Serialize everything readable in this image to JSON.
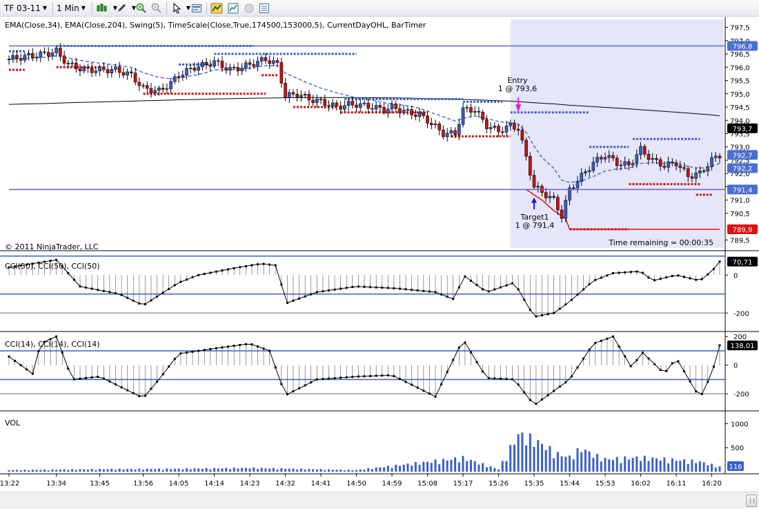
{
  "toolbar": {
    "instrument": "TF 03-11",
    "interval": "1 Min",
    "icons": [
      "bars-type-icon",
      "draw-pencil-icon",
      "zoom-in-icon",
      "zoom-out-icon",
      "pointer-icon",
      "properties-icon",
      "strategy-icon",
      "chart-trader-icon",
      "record-icon",
      "data-box-icon"
    ]
  },
  "price_panel": {
    "indicator_label": "EMA(Close,34), EMA(Close,204), Swing(5), TimeScale(Close,True,174500,153000,5), CurrentDayOHL, BarTimer",
    "copyright": "© 2011 NinjaTrader, LLC",
    "timer": "Time remaining = 00:00:35",
    "axis_ticks": [
      "797,5",
      "797,0",
      "796,5",
      "796,0",
      "795,5",
      "795,0",
      "794,5",
      "794,0",
      "793,5",
      "793,0",
      "792,5",
      "792,0",
      "791,5",
      "791,0",
      "790,5",
      "789,5"
    ],
    "price_markers": [
      {
        "label": "796,8",
        "value": 796.8,
        "color": "#4a6fd0"
      },
      {
        "label": "793,7",
        "value": 793.7,
        "color": "#000000"
      },
      {
        "label": "792,7",
        "value": 792.7,
        "color": "#4a6fd0"
      },
      {
        "label": "792,2",
        "value": 792.2,
        "color": "#4a6fd0"
      },
      {
        "label": "791,4",
        "value": 791.4,
        "color": "#4a6fd0"
      },
      {
        "label": "789,9",
        "value": 789.9,
        "color": "#e01010"
      }
    ],
    "entry_label": "Entry",
    "entry_detail": "1 @ 793,6",
    "target_label": "Target1",
    "target_detail": "1 @ 791,4"
  },
  "cci50_panel": {
    "label": "CCI(50), CCI(50), CCI(50)",
    "axis_ticks": [
      "0",
      "-200"
    ],
    "marker": "70,71"
  },
  "cci14_panel": {
    "label": "CCI(14), CCI(14), CCI(14)",
    "axis_ticks": [
      "200",
      "0",
      "-200"
    ],
    "marker": "138,01"
  },
  "volume_panel": {
    "label": "VOL",
    "axis_ticks": [
      "1000",
      "500"
    ],
    "marker": "116"
  },
  "time_axis": [
    "13:22",
    "13:34",
    "13:45",
    "13:56",
    "14:05",
    "14:14",
    "14:23",
    "14:32",
    "14:41",
    "14:50",
    "14:59",
    "15:08",
    "15:17",
    "15:26",
    "15:35",
    "15:44",
    "15:53",
    "16:02",
    "16:11",
    "16:20"
  ],
  "colors": {
    "up_bar": "#3a5fcd",
    "down_bar": "#cc1111",
    "ema_fast": "#4a6fd0",
    "ema_slow": "#000000",
    "swing_high": "#3a5fcd",
    "swing_low": "#cc1111",
    "session_shade": "#e6e6fa",
    "level_line": "#4a6fd0"
  },
  "chart_data": {
    "type": "candlestick",
    "x_range": [
      "13:22",
      "16:22"
    ],
    "y_range": [
      789.2,
      797.8
    ],
    "levels": {
      "day_high": 796.8,
      "day_low": 789.9,
      "target": 791.4,
      "current": 792.7,
      "ema34": 792.2,
      "ema204": 793.7
    },
    "close_path": [
      [
        "13:22",
        796.3
      ],
      [
        "13:26",
        796.4
      ],
      [
        "13:31",
        796.5
      ],
      [
        "13:34",
        796.6
      ],
      [
        "13:37",
        796.1
      ],
      [
        "13:41",
        795.9
      ],
      [
        "13:45",
        795.9
      ],
      [
        "13:49",
        795.9
      ],
      [
        "13:53",
        795.7
      ],
      [
        "13:56",
        795.2
      ],
      [
        "14:00",
        795.1
      ],
      [
        "14:03",
        795.4
      ],
      [
        "14:05",
        795.7
      ],
      [
        "14:09",
        796.0
      ],
      [
        "14:12",
        796.1
      ],
      [
        "14:14",
        796.2
      ],
      [
        "14:18",
        795.9
      ],
      [
        "14:21",
        796.0
      ],
      [
        "14:23",
        796.1
      ],
      [
        "14:27",
        796.3
      ],
      [
        "14:30",
        796.1
      ],
      [
        "14:32",
        794.9
      ],
      [
        "14:35",
        795.0
      ],
      [
        "14:38",
        794.8
      ],
      [
        "14:41",
        794.7
      ],
      [
        "14:45",
        794.5
      ],
      [
        "14:48",
        794.6
      ],
      [
        "14:50",
        794.6
      ],
      [
        "14:54",
        794.5
      ],
      [
        "14:57",
        794.4
      ],
      [
        "14:59",
        794.5
      ],
      [
        "15:03",
        794.3
      ],
      [
        "15:06",
        794.2
      ],
      [
        "15:08",
        794.0
      ],
      [
        "15:12",
        793.5
      ],
      [
        "15:15",
        793.5
      ],
      [
        "15:17",
        794.4
      ],
      [
        "15:20",
        794.4
      ],
      [
        "15:23",
        793.8
      ],
      [
        "15:26",
        793.6
      ],
      [
        "15:29",
        793.8
      ],
      [
        "15:31",
        793.7
      ],
      [
        "15:33",
        792.6
      ],
      [
        "15:35",
        791.5
      ],
      [
        "15:37",
        791.3
      ],
      [
        "15:40",
        791.0
      ],
      [
        "15:42",
        790.4
      ],
      [
        "15:44",
        791.4
      ],
      [
        "15:47",
        791.9
      ],
      [
        "15:50",
        792.4
      ],
      [
        "15:53",
        792.7
      ],
      [
        "15:56",
        792.4
      ],
      [
        "15:59",
        792.3
      ],
      [
        "16:02",
        792.9
      ],
      [
        "16:05",
        792.5
      ],
      [
        "16:08",
        792.3
      ],
      [
        "16:11",
        792.4
      ],
      [
        "16:14",
        791.9
      ],
      [
        "16:17",
        792.0
      ],
      [
        "16:20",
        792.5
      ],
      [
        "16:22",
        792.7
      ]
    ],
    "cci50": [
      [
        "13:22",
        40
      ],
      [
        "13:34",
        80
      ],
      [
        "13:40",
        -60
      ],
      [
        "13:50",
        -100
      ],
      [
        "13:56",
        -160
      ],
      [
        "14:05",
        -40
      ],
      [
        "14:10",
        0
      ],
      [
        "14:20",
        40
      ],
      [
        "14:26",
        60
      ],
      [
        "14:30",
        50
      ],
      [
        "14:32",
        -150
      ],
      [
        "14:40",
        -90
      ],
      [
        "14:50",
        -60
      ],
      [
        "15:00",
        -70
      ],
      [
        "15:10",
        -90
      ],
      [
        "15:15",
        -130
      ],
      [
        "15:17",
        0
      ],
      [
        "15:23",
        -90
      ],
      [
        "15:30",
        -40
      ],
      [
        "15:35",
        -220
      ],
      [
        "15:40",
        -200
      ],
      [
        "15:44",
        -140
      ],
      [
        "15:50",
        -30
      ],
      [
        "15:55",
        10
      ],
      [
        "16:02",
        20
      ],
      [
        "16:05",
        -30
      ],
      [
        "16:11",
        0
      ],
      [
        "16:17",
        -30
      ],
      [
        "16:20",
        20
      ],
      [
        "16:22",
        70.71
      ]
    ],
    "cci14": [
      [
        "13:22",
        60
      ],
      [
        "13:28",
        -60
      ],
      [
        "13:30",
        150
      ],
      [
        "13:34",
        200
      ],
      [
        "13:38",
        -100
      ],
      [
        "13:45",
        -80
      ],
      [
        "13:56",
        -230
      ],
      [
        "14:00",
        -100
      ],
      [
        "14:05",
        80
      ],
      [
        "14:15",
        120
      ],
      [
        "14:23",
        150
      ],
      [
        "14:28",
        100
      ],
      [
        "14:32",
        -210
      ],
      [
        "14:40",
        -100
      ],
      [
        "14:50",
        -80
      ],
      [
        "14:59",
        -70
      ],
      [
        "15:05",
        -150
      ],
      [
        "15:10",
        -220
      ],
      [
        "15:17",
        180
      ],
      [
        "15:23",
        -90
      ],
      [
        "15:30",
        -100
      ],
      [
        "15:35",
        -280
      ],
      [
        "15:40",
        -180
      ],
      [
        "15:44",
        -100
      ],
      [
        "15:50",
        150
      ],
      [
        "15:55",
        200
      ],
      [
        "16:00",
        -30
      ],
      [
        "16:02",
        100
      ],
      [
        "16:08",
        -60
      ],
      [
        "16:11",
        50
      ],
      [
        "16:17",
        -230
      ],
      [
        "16:20",
        -60
      ],
      [
        "16:22",
        138.01
      ]
    ],
    "volume": [
      [
        "13:22",
        40
      ],
      [
        "13:45",
        60
      ],
      [
        "14:05",
        70
      ],
      [
        "14:23",
        90
      ],
      [
        "14:50",
        40
      ],
      [
        "15:17",
        330
      ],
      [
        "15:26",
        60
      ],
      [
        "15:31",
        900
      ],
      [
        "15:35",
        760
      ],
      [
        "15:38",
        600
      ],
      [
        "15:41",
        420
      ],
      [
        "15:44",
        350
      ],
      [
        "15:47",
        560
      ],
      [
        "15:50",
        410
      ],
      [
        "15:53",
        300
      ],
      [
        "16:02",
        340
      ],
      [
        "16:11",
        280
      ],
      [
        "16:17",
        240
      ],
      [
        "16:22",
        116
      ]
    ]
  }
}
